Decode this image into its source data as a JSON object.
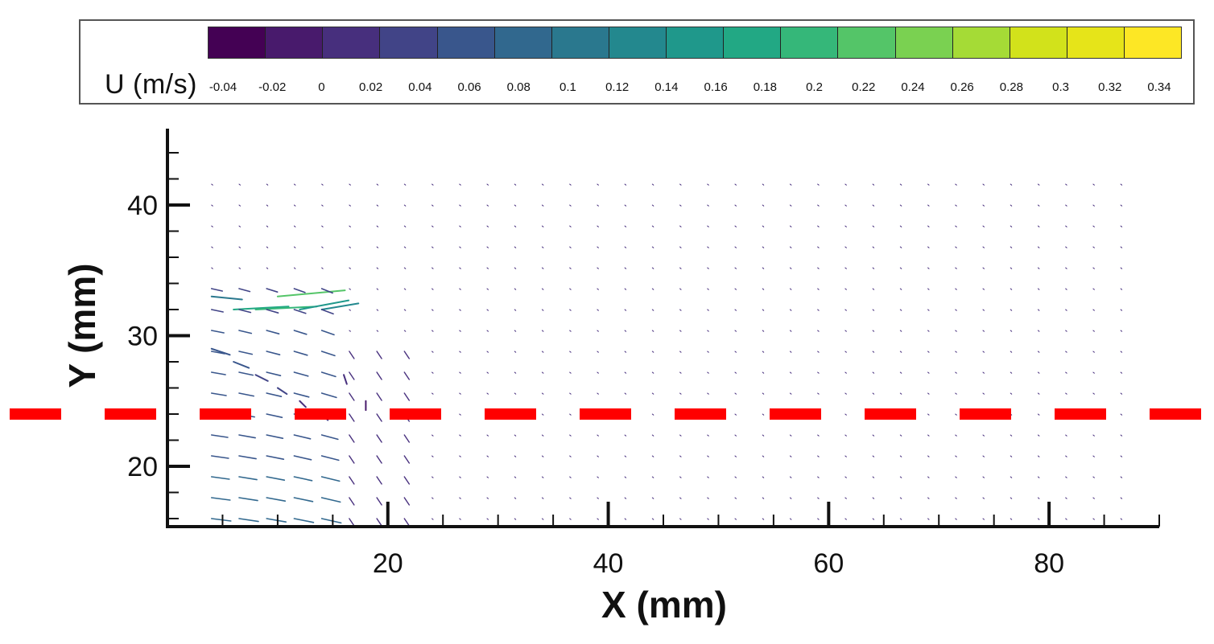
{
  "colorbar": {
    "label": "U (m/s)",
    "ticks": [
      "-0.04",
      "-0.02",
      "0",
      "0.02",
      "0.04",
      "0.06",
      "0.08",
      "0.1",
      "0.12",
      "0.14",
      "0.16",
      "0.18",
      "0.2",
      "0.22",
      "0.24",
      "0.26",
      "0.28",
      "0.3",
      "0.32",
      "0.34"
    ],
    "colors": [
      "#440154",
      "#481a6c",
      "#472f7d",
      "#414487",
      "#39568c",
      "#31688e",
      "#2a788e",
      "#23888e",
      "#1f988b",
      "#22a884",
      "#35b779",
      "#54c568",
      "#7ad151",
      "#a5db36",
      "#d2e21b",
      "#e6e419",
      "#fde725"
    ]
  },
  "chart_data": {
    "type": "vector-field",
    "xlabel": "X (mm)",
    "ylabel": "Y (mm)",
    "x_ticks": [
      20,
      40,
      60,
      80
    ],
    "y_ticks": [
      20,
      30,
      40
    ],
    "xlim": [
      0,
      90
    ],
    "ylim": [
      15,
      45
    ],
    "reference_line": {
      "y": 24,
      "color": "#ff0000",
      "style": "dashed"
    },
    "vectors_near_jet": [
      {
        "x": 4,
        "y": 33,
        "u": 0.1,
        "v": -0.01
      },
      {
        "x": 6,
        "y": 32,
        "u": 0.18,
        "v": 0.01
      },
      {
        "x": 8,
        "y": 32,
        "u": 0.2,
        "v": 0.01
      },
      {
        "x": 10,
        "y": 33,
        "u": 0.22,
        "v": 0.02
      },
      {
        "x": 12,
        "y": 32,
        "u": 0.16,
        "v": 0.03
      },
      {
        "x": 14,
        "y": 32,
        "u": 0.12,
        "v": 0.02
      },
      {
        "x": 4,
        "y": 29,
        "u": 0.06,
        "v": -0.02
      },
      {
        "x": 6,
        "y": 28,
        "u": 0.05,
        "v": -0.02
      },
      {
        "x": 8,
        "y": 27,
        "u": 0.04,
        "v": -0.02
      },
      {
        "x": 10,
        "y": 26,
        "u": 0.03,
        "v": -0.02
      },
      {
        "x": 12,
        "y": 25,
        "u": 0.02,
        "v": -0.02
      },
      {
        "x": 14,
        "y": 24,
        "u": 0.02,
        "v": -0.02
      },
      {
        "x": 16,
        "y": 27,
        "u": 0.01,
        "v": -0.03
      },
      {
        "x": 18,
        "y": 25,
        "u": 0.0,
        "v": -0.03
      }
    ]
  }
}
